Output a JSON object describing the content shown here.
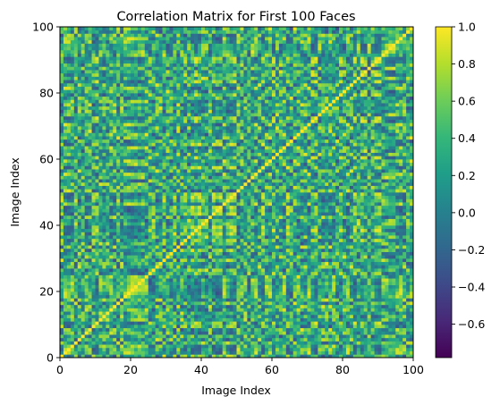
{
  "chart_data": {
    "type": "heatmap",
    "title": "Correlation Matrix for First 100 Faces",
    "xlabel": "Image Index",
    "ylabel": "Image Index",
    "n": 100,
    "xlim": [
      0,
      100
    ],
    "ylim": [
      0,
      100
    ],
    "x_ticks": [
      0,
      20,
      40,
      60,
      80,
      100
    ],
    "y_ticks": [
      0,
      20,
      40,
      60,
      80,
      100
    ],
    "origin": "lower",
    "colormap": "viridis",
    "vmin": -0.78,
    "vmax": 1.0,
    "colorbar_ticks": [
      1.0,
      0.8,
      0.6,
      0.4,
      0.2,
      0.0,
      -0.2,
      -0.4,
      -0.6
    ],
    "colorbar_tick_labels": [
      "1.0",
      "0.8",
      "0.6",
      "0.4",
      "0.2",
      "0.0",
      "−0.2",
      "−0.4",
      "−0.6"
    ],
    "grid": false,
    "diagonal_value": 1.0
  }
}
